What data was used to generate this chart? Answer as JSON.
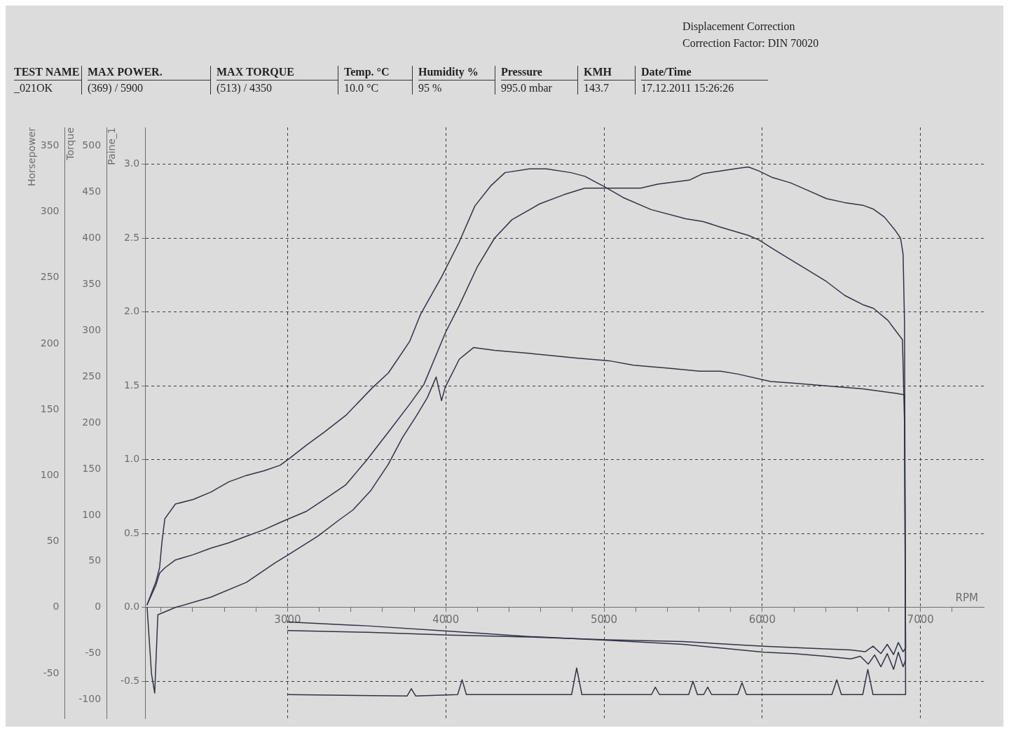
{
  "chart_data": {
    "type": "line",
    "xlabel": "RPM",
    "ylabel": "Paine_1",
    "y2label": "Horsepower",
    "y3label": "Torque",
    "annotations": [
      "Displacement Correction",
      "Correction Factor: DIN 70020",
      "TEST NAME",
      "_021OK",
      "MAX POWER.",
      "(369) / 5900",
      "MAX TORQUE",
      "(513) / 4350",
      "Temp. °C",
      "10.0 °C",
      "Humidity %",
      "95 %",
      "Pressure",
      "995.0 mbar",
      "KMH",
      "143.7",
      "Date/Time",
      "17.12.2011 15:26:26"
    ],
    "xlim": [
      2100,
      7400
    ],
    "xticks": [
      {
        "value": 2200,
        "label": null
      },
      {
        "value": 2400,
        "label": null
      },
      {
        "value": 2600,
        "label": null
      },
      {
        "value": 2800,
        "label": null
      },
      3000,
      {
        "value": 3200,
        "label": null
      },
      {
        "value": 3400,
        "label": null
      },
      {
        "value": 3600,
        "label": null
      },
      {
        "value": 3800,
        "label": null
      },
      4000,
      {
        "value": 4200,
        "label": null
      },
      {
        "value": 4400,
        "label": null
      },
      {
        "value": 4600,
        "label": null
      },
      {
        "value": 4800,
        "label": null
      },
      5000,
      {
        "value": 5200,
        "label": null
      },
      {
        "value": 5400,
        "label": null
      },
      {
        "value": 5600,
        "label": null
      },
      {
        "value": 5800,
        "label": null
      },
      6000,
      {
        "value": 6200,
        "label": null
      },
      {
        "value": 6400,
        "label": null
      },
      {
        "value": 6600,
        "label": null
      },
      {
        "value": 6800,
        "label": null
      },
      7000,
      {
        "value": 7200,
        "label": null
      }
    ],
    "ylim": [
      -0.75,
      3.25
    ],
    "yticks": [
      -0.5,
      {
        "value": 0,
        "label": "0.0"
      },
      0.5,
      {
        "value": 1,
        "label": "1.0"
      },
      1.5,
      {
        "value": 2,
        "label": "2.0"
      },
      2.5,
      {
        "value": 3,
        "label": "3.0"
      }
    ],
    "y2lim": [
      -84,
      364
    ],
    "y2ticks": [
      -50,
      0,
      50,
      100,
      150,
      200,
      250,
      300,
      350
    ],
    "y3lim": [
      -120,
      520
    ],
    "y3ticks": [
      -100,
      -50,
      0,
      50,
      100,
      150,
      200,
      250,
      300,
      350,
      400,
      450,
      500
    ],
    "grid": true,
    "series": [
      {
        "color": "#303347",
        "axis": "y2",
        "x": [
          2112,
          2168,
          2191,
          2224,
          2291,
          2404,
          2516,
          2628,
          2740,
          2852,
          2964,
          3121,
          3233,
          3368,
          3502,
          3637,
          3771,
          3861,
          4000,
          4085,
          4198,
          4308,
          4418,
          4593,
          4747,
          4879,
          4989,
          5121,
          5231,
          5341,
          5539,
          5626,
          5736,
          5846,
          5912,
          5978,
          6064,
          6178,
          6292,
          6406,
          6521,
          6635,
          6703,
          6772,
          6840,
          6874,
          6890,
          6899,
          6906,
          6890,
          6860,
          6830,
          6790,
          6750,
          6710,
          6670,
          6620,
          6560,
          6400,
          6200,
          6012,
          5500,
          5025,
          4520,
          4025,
          3506,
          3000
        ],
        "values": [
          2,
          17,
          26,
          30,
          36,
          40,
          45,
          49,
          54,
          59,
          65,
          73,
          82,
          93,
          112,
          133,
          154,
          169,
          209,
          229,
          258,
          280,
          294,
          306,
          313,
          318,
          318,
          318,
          318,
          321,
          324,
          329,
          331,
          333,
          334,
          331,
          326,
          322,
          316,
          310,
          307,
          305,
          302,
          296,
          286,
          280,
          268,
          216,
          -40,
          -45,
          -34,
          -47,
          -35,
          -45,
          -36,
          -43,
          -37,
          -39,
          -37,
          -35,
          -34,
          -28,
          -25,
          -22,
          -18,
          -14,
          -11
        ]
      },
      {
        "color": "#303347",
        "axis": "y3",
        "x": [
          2112,
          2168,
          2191,
          2206,
          2224,
          2291,
          2404,
          2516,
          2628,
          2740,
          2852,
          2953,
          3009,
          3121,
          3233,
          3368,
          3536,
          3637,
          3771,
          3839,
          3973,
          4085,
          4184,
          4286,
          4374,
          4528,
          4637,
          4791,
          4879,
          4945,
          5000,
          5121,
          5297,
          5516,
          5626,
          5736,
          5912,
          5980,
          6053,
          6110,
          6292,
          6406,
          6521,
          6635,
          6703,
          6794,
          6886,
          6899,
          6906,
          6890,
          6860,
          6830,
          6790,
          6750,
          6700,
          6650,
          6560,
          6400,
          6012,
          5500,
          5025,
          4520,
          4025,
          3506,
          3000
        ],
        "values": [
          3,
          28,
          43,
          71,
          96,
          112,
          117,
          125,
          136,
          143,
          148,
          154,
          161,
          176,
          190,
          208,
          238,
          254,
          288,
          317,
          358,
          396,
          435,
          457,
          471,
          475,
          475,
          471,
          467,
          461,
          456,
          444,
          431,
          421,
          418,
          412,
          403,
          398,
          390,
          384,
          365,
          353,
          338,
          328,
          324,
          311,
          290,
          200,
          -44,
          -48,
          -38,
          -51,
          -40,
          -50,
          -42,
          -48,
          -46,
          -45,
          -42,
          -37,
          -35,
          -32,
          -30,
          -27,
          -25
        ]
      },
      {
        "color": "#303347",
        "x": [
          2112,
          2140,
          2160,
          2180,
          2291,
          2516,
          2740,
          2919,
          3009,
          3188,
          3323,
          3413,
          3525,
          3637,
          3726,
          3816,
          3883,
          3939,
          3973,
          3996,
          4085,
          4176,
          4308,
          4528,
          4813,
          5033,
          5187,
          5407,
          5604,
          5736,
          5846,
          6053,
          6178,
          6406,
          6635,
          6840,
          6899,
          6906,
          6875,
          6700,
          6667,
          6635,
          6500,
          6471,
          6440,
          5900,
          5872,
          5845,
          5680,
          5655,
          5630,
          5590,
          5562,
          5535,
          5350,
          5324,
          5300,
          4860,
          4827,
          4795,
          4130,
          4103,
          4075,
          3810,
          3782,
          3755,
          3000
        ],
        "values": [
          0,
          -0.45,
          -0.58,
          -0.05,
          0,
          0.07,
          0.17,
          0.3,
          0.36,
          0.48,
          0.59,
          0.66,
          0.79,
          0.97,
          1.15,
          1.3,
          1.42,
          1.56,
          1.4,
          1.49,
          1.68,
          1.76,
          1.74,
          1.72,
          1.69,
          1.67,
          1.64,
          1.62,
          1.6,
          1.6,
          1.58,
          1.53,
          1.52,
          1.5,
          1.48,
          1.45,
          1.44,
          -0.59,
          -0.59,
          -0.59,
          -0.42,
          -0.59,
          -0.59,
          -0.49,
          -0.59,
          -0.59,
          -0.51,
          -0.59,
          -0.59,
          -0.54,
          -0.59,
          -0.59,
          -0.5,
          -0.59,
          -0.59,
          -0.54,
          -0.59,
          -0.59,
          -0.41,
          -0.59,
          -0.59,
          -0.49,
          -0.59,
          -0.6,
          -0.55,
          -0.6,
          -0.59
        ]
      }
    ]
  }
}
